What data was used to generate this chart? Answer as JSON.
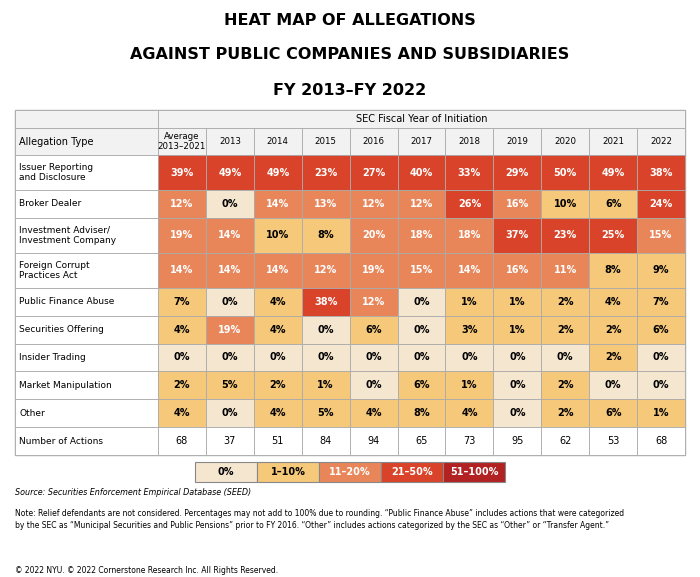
{
  "title_line1": "HEAT MAP OF ALLEGATIONS",
  "title_line2": "AGAINST PUBLIC COMPANIES AND SUBSIDIARIES",
  "title_line3": "FY 2013–FY 2022",
  "header_group": "SEC Fiscal Year of Initiation",
  "col_headers": [
    "Average\n2013–2021",
    "2013",
    "2014",
    "2015",
    "2016",
    "2017",
    "2018",
    "2019",
    "2020",
    "2021",
    "2022"
  ],
  "allegation_type_label": "Allegation Type",
  "row_labels": [
    "Issuer Reporting\nand Disclosure",
    "Broker Dealer",
    "Investment Adviser/\nInvestment Company",
    "Foreign Corrupt\nPractices Act",
    "Public Finance Abuse",
    "Securities Offering",
    "Insider Trading",
    "Market Manipulation",
    "Other",
    "Number of Actions"
  ],
  "values": [
    [
      39,
      49,
      49,
      23,
      27,
      40,
      33,
      29,
      50,
      49,
      38
    ],
    [
      12,
      0,
      14,
      13,
      12,
      12,
      26,
      16,
      10,
      6,
      24
    ],
    [
      19,
      14,
      10,
      8,
      20,
      18,
      18,
      37,
      23,
      25,
      15
    ],
    [
      14,
      14,
      14,
      12,
      19,
      15,
      14,
      16,
      11,
      8,
      9
    ],
    [
      7,
      0,
      4,
      38,
      12,
      0,
      1,
      1,
      2,
      4,
      7
    ],
    [
      4,
      19,
      4,
      0,
      6,
      0,
      3,
      1,
      2,
      2,
      6
    ],
    [
      0,
      0,
      0,
      0,
      0,
      0,
      0,
      0,
      0,
      2,
      0
    ],
    [
      2,
      5,
      2,
      1,
      0,
      6,
      1,
      0,
      2,
      0,
      0
    ],
    [
      4,
      0,
      4,
      5,
      4,
      8,
      4,
      0,
      2,
      6,
      1
    ],
    [
      68,
      37,
      51,
      84,
      94,
      65,
      73,
      95,
      62,
      53,
      68
    ]
  ],
  "color_0": "#f5e6d0",
  "color_1_10": "#f5c87a",
  "color_11_20": "#e8865a",
  "color_21_50": "#d9432a",
  "color_51_100": "#b22222",
  "legend_labels": [
    "0%",
    "1–10%",
    "11–20%",
    "21–50%",
    "51–100%"
  ],
  "source_text": "Source: Securities Enforcement Empirical Database (SEED)",
  "note_text": "Note: Relief defendants are not considered. Percentages may not add to 100% due to rounding. “Public Finance Abuse” includes actions that were categorized\nby the SEC as “Municipal Securities and Public Pensions” prior to FY 2016. “Other” includes actions categorized by the SEC as “Other” or “Transfer Agent.”",
  "copyright_text": "© 2022 NYU. © 2022 Cornerstone Research Inc. All Rights Reserved.",
  "background_color": "#ffffff",
  "text_color_dark": "#000000",
  "text_color_light": "#ffffff",
  "border_color": "#aaaaaa",
  "header_bg": "#f2f2f2"
}
